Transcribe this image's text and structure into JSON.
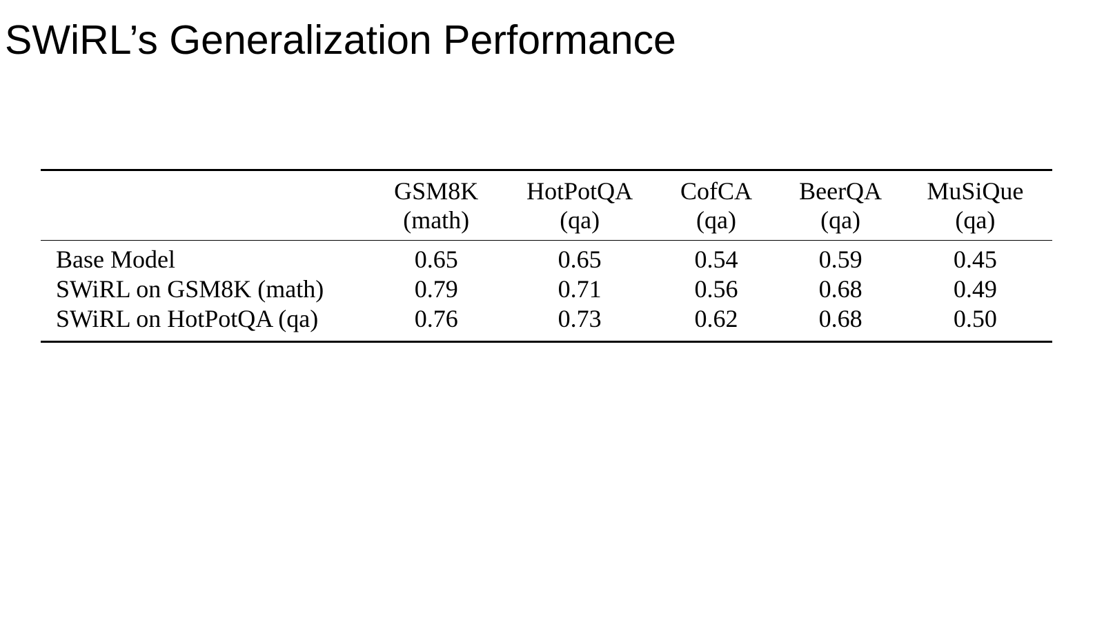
{
  "slide": {
    "title": "SWiRL’s Generalization Performance"
  },
  "table": {
    "columns": [
      {
        "name": "GSM8K",
        "type": "(math)"
      },
      {
        "name": "HotPotQA",
        "type": "(qa)"
      },
      {
        "name": "CofCA",
        "type": "(qa)"
      },
      {
        "name": "BeerQA",
        "type": "(qa)"
      },
      {
        "name": "MuSiQue",
        "type": "(qa)"
      }
    ],
    "rows": [
      {
        "label": "Base Model",
        "values": [
          "0.65",
          "0.65",
          "0.54",
          "0.59",
          "0.45"
        ]
      },
      {
        "label": "SWiRL on GSM8K (math)",
        "values": [
          "0.79",
          "0.71",
          "0.56",
          "0.68",
          "0.49"
        ]
      },
      {
        "label": "SWiRL on HotPotQA (qa)",
        "values": [
          "0.76",
          "0.73",
          "0.62",
          "0.68",
          "0.50"
        ]
      }
    ]
  }
}
